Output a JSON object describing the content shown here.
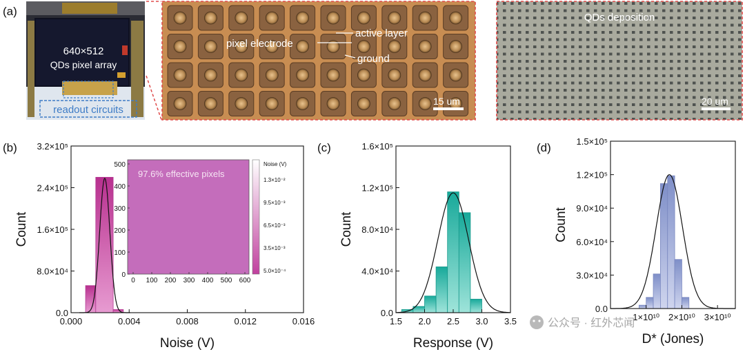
{
  "panels": {
    "a": {
      "label": "(a)",
      "photo": {
        "chip_text_1": "640×512",
        "chip_text_2": "QDs pixel array",
        "readout_label": "readout circuits"
      },
      "micro1": {
        "pixel_electrode": "pixel electrode",
        "active_layer": "active layer",
        "ground": "ground",
        "scale": "15 um"
      },
      "micro2": {
        "title": "QDs deposition",
        "scale": "20 um"
      }
    },
    "b": {
      "label": "(b)"
    },
    "c": {
      "label": "(c)"
    },
    "d": {
      "label": "(d)"
    }
  },
  "inset": {
    "text": "97.6% effective pixels",
    "cbar_title": "Noise (V)",
    "cbar_ticks": [
      "1.3×10⁻²",
      "9.5×10⁻³",
      "6.5×10⁻³",
      "3.5×10⁻³",
      "5.0×10⁻⁴"
    ],
    "x_ticks": [
      "0",
      "100",
      "200",
      "300",
      "400",
      "500",
      "600"
    ],
    "y_ticks": [
      "0",
      "100",
      "200",
      "300",
      "400",
      "500"
    ]
  },
  "watermark": "公众号 · 红外芯闻",
  "colors": {
    "magenta": "#c040a0",
    "teal": "#1fb5a5",
    "lavender": "#8e9bd0",
    "inset": "#c46dbb",
    "dashed": "#e04a4a"
  },
  "chart_data": [
    {
      "type": "bar",
      "panel": "b",
      "xlabel": "Noise (V)",
      "ylabel": "Count",
      "xlim": [
        0,
        0.016
      ],
      "ylim": [
        0,
        320000
      ],
      "x_ticks": [
        {
          "v": 0,
          "t": "0.000"
        },
        {
          "v": 0.004,
          "t": "0.004"
        },
        {
          "v": 0.008,
          "t": "0.008"
        },
        {
          "v": 0.012,
          "t": "0.012"
        },
        {
          "v": 0.016,
          "t": "0.016"
        }
      ],
      "y_ticks": [
        {
          "v": 0,
          "t": "0.0"
        },
        {
          "v": 80000,
          "t": "8.0×10⁴"
        },
        {
          "v": 160000,
          "t": "1.6×10⁵"
        },
        {
          "v": 240000,
          "t": "2.4×10⁵"
        },
        {
          "v": 320000,
          "t": "3.2×10⁵"
        }
      ],
      "bins": [
        {
          "x0": 0.001,
          "x1": 0.0017,
          "y": 52000
        },
        {
          "x0": 0.0017,
          "x1": 0.0029,
          "y": 260000
        },
        {
          "x0": 0.0029,
          "x1": 0.0036,
          "y": 6000
        }
      ],
      "fit": {
        "mu": 0.00232,
        "sigma": 0.00035,
        "amp": 258000
      }
    },
    {
      "type": "bar",
      "panel": "c",
      "xlabel": "Response (V)",
      "ylabel": "Count",
      "xlim": [
        1.5,
        3.5
      ],
      "ylim": [
        0,
        160000
      ],
      "x_ticks": [
        {
          "v": 1.5,
          "t": "1.5"
        },
        {
          "v": 2.0,
          "t": "2.0"
        },
        {
          "v": 2.5,
          "t": "2.5"
        },
        {
          "v": 3.0,
          "t": "3.0"
        },
        {
          "v": 3.5,
          "t": "3.5"
        }
      ],
      "y_ticks": [
        {
          "v": 0,
          "t": "0.0"
        },
        {
          "v": 40000,
          "t": "4.0×10⁴"
        },
        {
          "v": 80000,
          "t": "8.0×10⁴"
        },
        {
          "v": 120000,
          "t": "1.2×10⁵"
        },
        {
          "v": 160000,
          "t": "1.6×10⁵"
        }
      ],
      "bins": [
        {
          "x0": 1.6,
          "x1": 1.8,
          "y": 3000
        },
        {
          "x0": 1.8,
          "x1": 2.0,
          "y": 6000
        },
        {
          "x0": 2.0,
          "x1": 2.2,
          "y": 16000
        },
        {
          "x0": 2.2,
          "x1": 2.4,
          "y": 44000
        },
        {
          "x0": 2.4,
          "x1": 2.6,
          "y": 116000
        },
        {
          "x0": 2.6,
          "x1": 2.8,
          "y": 96000
        },
        {
          "x0": 2.8,
          "x1": 3.0,
          "y": 13000
        }
      ],
      "fit": {
        "mu": 2.5,
        "sigma": 0.27,
        "amp": 115000
      }
    },
    {
      "type": "bar",
      "panel": "d",
      "xlabel": "D* (Jones)",
      "ylabel": "Count",
      "xlim": [
        0,
        35000000000
      ],
      "ylim": [
        0,
        150000
      ],
      "x_ticks": [
        {
          "v": 10000000000,
          "t": "1×10¹⁰"
        },
        {
          "v": 20000000000,
          "t": "2×10¹⁰"
        },
        {
          "v": 30000000000,
          "t": "3×10¹⁰"
        }
      ],
      "y_ticks": [
        {
          "v": 0,
          "t": "0.0"
        },
        {
          "v": 30000,
          "t": "3.0×10⁴"
        },
        {
          "v": 60000,
          "t": "6.0×10⁴"
        },
        {
          "v": 90000,
          "t": "9.0×10⁴"
        },
        {
          "v": 120000,
          "t": "1.2×10⁵"
        },
        {
          "v": 150000,
          "t": "1.5×10⁵"
        }
      ],
      "bins": [
        {
          "x0": 8000000000,
          "x1": 10000000000,
          "y": 3000
        },
        {
          "x0": 10000000000,
          "x1": 12000000000,
          "y": 10000
        },
        {
          "x0": 12000000000,
          "x1": 14000000000,
          "y": 31000
        },
        {
          "x0": 14000000000,
          "x1": 16000000000,
          "y": 112000
        },
        {
          "x0": 16000000000,
          "x1": 18000000000,
          "y": 119000
        },
        {
          "x0": 18000000000,
          "x1": 20000000000,
          "y": 44000
        },
        {
          "x0": 20000000000,
          "x1": 22000000000,
          "y": 10000
        }
      ],
      "fit": {
        "mu": 16500000000,
        "sigma": 3700000000,
        "amp": 120000
      }
    }
  ]
}
